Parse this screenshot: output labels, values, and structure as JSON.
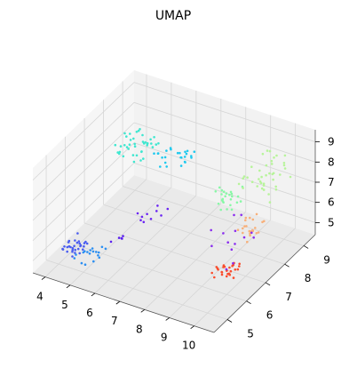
{
  "chart_data": {
    "type": "scatter",
    "projection": "3d",
    "title": "UMAP",
    "xlabel": "",
    "ylabel": "",
    "zlabel": "",
    "grid": true,
    "legend": "none",
    "xlim": [
      3.5,
      10.8
    ],
    "ylim": [
      4.3,
      9.6
    ],
    "zlim": [
      4.4,
      9.6
    ],
    "x_ticks": [
      4,
      5,
      6,
      7,
      8,
      9,
      10
    ],
    "y_ticks": [
      5,
      6,
      7,
      8,
      9
    ],
    "z_ticks": [
      5,
      6,
      7,
      8,
      9
    ],
    "colormap": "rainbow",
    "pane_color": "#f2f2f2",
    "grid_color": "#d6d6d6",
    "clusters": [
      {
        "color": "#4a5cf0",
        "x": [
          4.3,
          4.9
        ],
        "y": [
          4.5,
          5.6
        ],
        "z": [
          5.3,
          5.8
        ],
        "n": 30
      },
      {
        "color": "#2b8ff2",
        "x": [
          4.8,
          5.6
        ],
        "y": [
          4.5,
          5.6
        ],
        "z": [
          4.9,
          5.5
        ],
        "n": 18
      },
      {
        "color": "#3ee7d0",
        "x": [
          3.7,
          5.0
        ],
        "y": [
          8.0,
          9.2
        ],
        "z": [
          6.9,
          7.5
        ],
        "n": 40
      },
      {
        "color": "#1ec9ee",
        "x": [
          5.3,
          6.4
        ],
        "y": [
          8.2,
          9.2
        ],
        "z": [
          6.8,
          7.4
        ],
        "n": 25
      },
      {
        "color": "#6a24f2",
        "x": [
          6.2,
          7.0
        ],
        "y": [
          6.2,
          7.0
        ],
        "z": [
          6.2,
          6.8
        ],
        "n": 10
      },
      {
        "color": "#5a20ee",
        "x": [
          5.6,
          6.0
        ],
        "y": [
          5.6,
          6.0
        ],
        "z": [
          5.5,
          5.8
        ],
        "n": 5
      },
      {
        "color": "#88f8a6",
        "x": [
          8.0,
          8.8
        ],
        "y": [
          7.8,
          8.5
        ],
        "z": [
          6.2,
          7.0
        ],
        "n": 25
      },
      {
        "color": "#b7f49a",
        "x": [
          9.0,
          10.4
        ],
        "y": [
          7.6,
          9.2
        ],
        "z": [
          7.4,
          8.8
        ],
        "n": 40
      },
      {
        "color": "#f8b07a",
        "x": [
          9.8,
          10.5
        ],
        "y": [
          6.6,
          7.4
        ],
        "z": [
          6.3,
          7.2
        ],
        "n": 22
      },
      {
        "color": "#fa4c2c",
        "x": [
          9.4,
          10.2
        ],
        "y": [
          6.0,
          6.6
        ],
        "z": [
          4.9,
          5.6
        ],
        "n": 28
      },
      {
        "color": "#8a2cf0",
        "x": [
          8.4,
          10.3
        ],
        "y": [
          6.0,
          8.0
        ],
        "z": [
          5.2,
          7.6
        ],
        "n": 14
      }
    ]
  }
}
